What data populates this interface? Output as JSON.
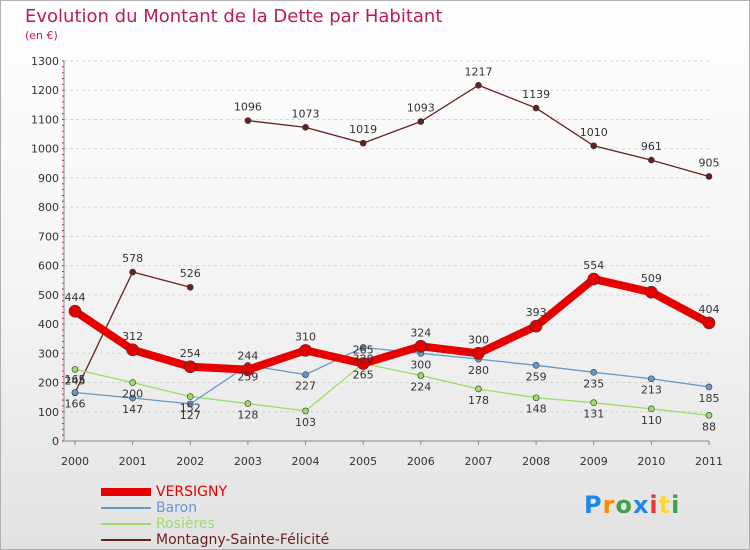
{
  "header": {
    "title": "Evolution du Montant de la Dette par Habitant",
    "subtitle": "(en €)"
  },
  "chart_data": {
    "type": "line",
    "title": "Evolution du Montant de la Dette par Habitant",
    "subtitle": "(en €)",
    "xlabel": "",
    "ylabel": "",
    "categories": [
      "2000",
      "2001",
      "2002",
      "2003",
      "2004",
      "2005",
      "2006",
      "2007",
      "2008",
      "2009",
      "2010",
      "2011"
    ],
    "ylim": [
      0,
      1300
    ],
    "yticks": [
      0,
      100,
      200,
      300,
      400,
      500,
      600,
      700,
      800,
      900,
      1000,
      1100,
      1200,
      1300
    ],
    "grid": "horizontal",
    "legend_position": "bottom-left",
    "series": [
      {
        "name": "VERSIGNY",
        "color": "#e60000",
        "values": [
          444,
          312,
          254,
          244,
          310,
          265,
          324,
          300,
          393,
          554,
          509,
          404
        ]
      },
      {
        "name": "Baron",
        "color": "#6699cc",
        "values": [
          166,
          147,
          127,
          259,
          227,
          320,
          300,
          280,
          259,
          235,
          213,
          185
        ]
      },
      {
        "name": "Rosières",
        "color": "#99dd66",
        "values": [
          245,
          200,
          152,
          128,
          103,
          265,
          224,
          178,
          148,
          131,
          110,
          88
        ]
      },
      {
        "name": "Montagny-Sainte-Félicité",
        "color": "#6b1f1f",
        "values": [
          165,
          578,
          526,
          1096,
          1073,
          1019,
          1093,
          1217,
          1139,
          1010,
          961,
          905
        ]
      }
    ]
  },
  "legend": {
    "items": [
      {
        "label": "VERSIGNY",
        "color": "#e60000"
      },
      {
        "label": "Baron",
        "color": "#6699cc"
      },
      {
        "label": "Rosières",
        "color": "#99dd66"
      },
      {
        "label": "Montagny-Sainte-Félicité",
        "color": "#6b1f1f"
      }
    ]
  },
  "logo": {
    "text": "Proxiti"
  }
}
